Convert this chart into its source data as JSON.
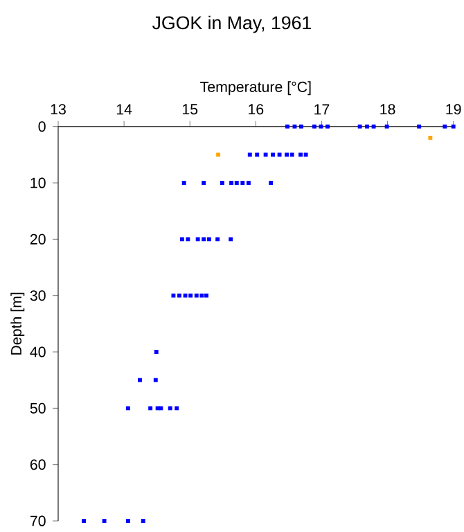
{
  "chart_data": {
    "type": "scatter",
    "title": "JGOK in May, 1961",
    "xlabel": "Temperature [°C]",
    "ylabel": "Depth [m]",
    "xlim": [
      13,
      19
    ],
    "xticks": [
      13,
      14,
      15,
      16,
      17,
      18,
      19
    ],
    "ylim": [
      70,
      0
    ],
    "yticks": [
      0,
      10,
      20,
      30,
      40,
      50,
      60,
      70
    ],
    "marker": "square",
    "series": [
      {
        "color": "#0000ff",
        "x": [
          16.48,
          16.59,
          16.69,
          16.89,
          16.99,
          17.09,
          17.58,
          17.69,
          17.79,
          17.99,
          18.48,
          18.87,
          19.0,
          15.91,
          16.02,
          16.15,
          16.26,
          16.36,
          16.47,
          16.55,
          16.68,
          16.76,
          14.91,
          15.21,
          15.49,
          15.63,
          15.71,
          15.8,
          15.89,
          16.23,
          14.88,
          14.97,
          15.12,
          15.21,
          15.29,
          15.42,
          15.62,
          14.75,
          14.84,
          14.93,
          15.01,
          15.1,
          15.18,
          15.25,
          14.49,
          14.24,
          14.48,
          14.06,
          14.4,
          14.51,
          14.56,
          14.7,
          14.8,
          13.39,
          13.7,
          14.06,
          14.29
        ],
        "values": [
          0,
          0,
          0,
          0,
          0,
          0,
          0,
          0,
          0,
          0,
          0,
          0,
          0,
          5,
          5,
          5,
          5,
          5,
          5,
          5,
          5,
          5,
          10,
          10,
          10,
          10,
          10,
          10,
          10,
          10,
          20,
          20,
          20,
          20,
          20,
          20,
          20,
          30,
          30,
          30,
          30,
          30,
          30,
          30,
          40,
          45,
          45,
          50,
          50,
          50,
          50,
          50,
          50,
          70,
          70,
          70,
          70
        ]
      },
      {
        "color": "#ffa500",
        "x": [
          18.65,
          15.43
        ],
        "values": [
          2,
          5
        ]
      }
    ]
  }
}
